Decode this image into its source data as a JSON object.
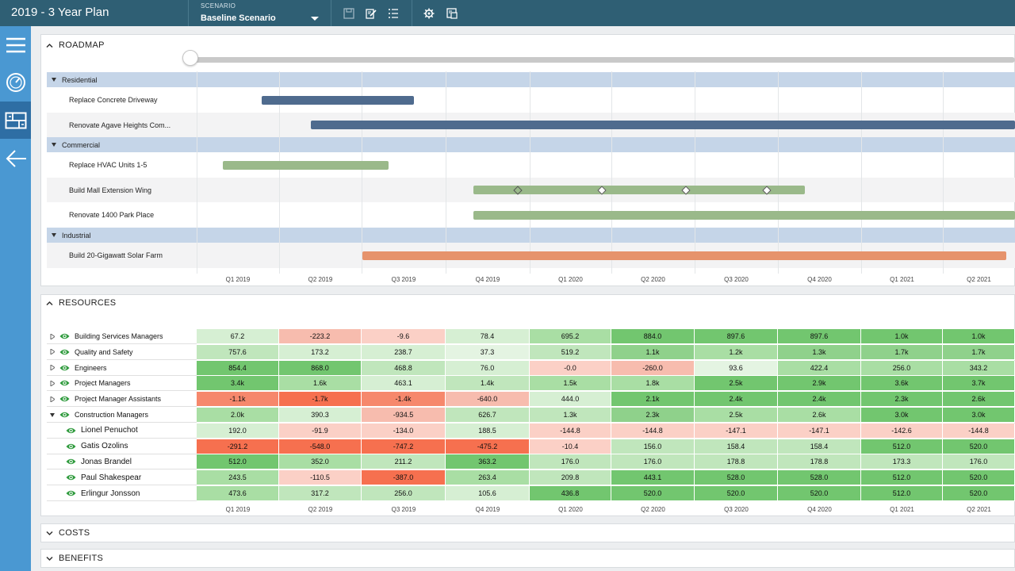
{
  "app": {
    "title": "2019 - 3 Year Plan"
  },
  "scenario": {
    "label": "SCENARIO",
    "value": "Baseline Scenario"
  },
  "toolbar_icons": [
    "save-icon",
    "edit-icon",
    "list-icon",
    "settings-gear-icon",
    "export-icon"
  ],
  "sidebar": [
    "menu-icon",
    "dashboard-gauge-icon",
    "roadmap-icon",
    "back-arrow-icon"
  ],
  "colors": {
    "topbar": "#2f5f74",
    "sidebar": "#4a98d2",
    "group_row": "#c5d5e8",
    "bar_blue": "#4f6b8e",
    "bar_green": "#9ab98a",
    "bar_orange": "#e6936c"
  },
  "roadmap": {
    "title": "ROADMAP",
    "quarters": [
      "Q1 2019",
      "Q2 2019",
      "Q3 2019",
      "Q4 2019",
      "Q1 2020",
      "Q2 2020",
      "Q3 2020",
      "Q4 2020",
      "Q1 2021",
      "Q2 2021"
    ],
    "rows": [
      {
        "type": "group",
        "label": "Residential"
      },
      {
        "type": "task",
        "label": "Replace Concrete Driveway"
      },
      {
        "type": "task",
        "label": "Renovate Agave Heights Com..."
      },
      {
        "type": "group",
        "label": "Commercial"
      },
      {
        "type": "task",
        "label": "Replace HVAC Units 1-5"
      },
      {
        "type": "task",
        "label": "Build Mall Extension Wing"
      },
      {
        "type": "task",
        "label": "Renovate 1400 Park Place"
      },
      {
        "type": "group",
        "label": "Industrial"
      },
      {
        "type": "task",
        "label": "Build 20-Gigawatt Solar Farm"
      }
    ]
  },
  "resources": {
    "title": "RESOURCES",
    "quarters": [
      "Q1 2019",
      "Q2 2019",
      "Q3 2019",
      "Q4 2019",
      "Q1 2020",
      "Q2 2020",
      "Q3 2020",
      "Q4 2020",
      "Q1 2021",
      "Q2 2021"
    ],
    "rows": [
      {
        "name": "Building Services Managers",
        "level": 0,
        "expanded": false,
        "values": [
          "67.2",
          "-223.2",
          "-9.6",
          "78.4",
          "695.2",
          "884.0",
          "897.6",
          "897.6",
          "1.0k",
          "1.0k"
        ],
        "colors": [
          "#d6efd3",
          "#f7bcae",
          "#fbd0c6",
          "#d6efd3",
          "#a9dea4",
          "#72c66f",
          "#72c66f",
          "#72c66f",
          "#72c66f",
          "#72c66f"
        ]
      },
      {
        "name": "Quality and Safety",
        "level": 0,
        "expanded": false,
        "values": [
          "757.6",
          "173.2",
          "238.7",
          "37.3",
          "519.2",
          "1.1k",
          "1.2k",
          "1.3k",
          "1.7k",
          "1.7k"
        ],
        "colors": [
          "#c0e6bc",
          "#d6efd3",
          "#d6efd3",
          "#e4f4e2",
          "#c0e6bc",
          "#8fd18b",
          "#a9dea4",
          "#8fd18b",
          "#8fd18b",
          "#8fd18b"
        ]
      },
      {
        "name": "Engineers",
        "level": 0,
        "expanded": false,
        "values": [
          "854.4",
          "868.0",
          "468.8",
          "76.0",
          "-0.0",
          "-260.0",
          "93.6",
          "422.4",
          "256.0",
          "343.2"
        ],
        "colors": [
          "#72c66f",
          "#72c66f",
          "#c0e6bc",
          "#d6efd3",
          "#fbd0c6",
          "#f7bcae",
          "#e4f4e2",
          "#a9dea4",
          "#a9dea4",
          "#a9dea4"
        ]
      },
      {
        "name": "Project Managers",
        "level": 0,
        "expanded": false,
        "values": [
          "3.4k",
          "1.6k",
          "463.1",
          "1.4k",
          "1.5k",
          "1.8k",
          "2.5k",
          "2.9k",
          "3.6k",
          "3.7k"
        ],
        "colors": [
          "#72c66f",
          "#a9dea4",
          "#d6efd3",
          "#c0e6bc",
          "#a9dea4",
          "#a9dea4",
          "#72c66f",
          "#72c66f",
          "#72c66f",
          "#72c66f"
        ]
      },
      {
        "name": "Project Manager Assistants",
        "level": 0,
        "expanded": false,
        "values": [
          "-1.1k",
          "-1.7k",
          "-1.4k",
          "-640.0",
          "444.0",
          "2.1k",
          "2.4k",
          "2.4k",
          "2.3k",
          "2.6k"
        ],
        "colors": [
          "#f6886c",
          "#f6704f",
          "#f6886c",
          "#f7bcae",
          "#d6efd3",
          "#72c66f",
          "#72c66f",
          "#72c66f",
          "#72c66f",
          "#72c66f"
        ]
      },
      {
        "name": "Construction Managers",
        "level": 0,
        "expanded": true,
        "values": [
          "2.0k",
          "390.3",
          "-934.5",
          "626.7",
          "1.3k",
          "2.3k",
          "2.5k",
          "2.6k",
          "3.0k",
          "3.0k"
        ],
        "colors": [
          "#a9dea4",
          "#d6efd3",
          "#f7bcae",
          "#c0e6bc",
          "#c0e6bc",
          "#8fd18b",
          "#a9dea4",
          "#a9dea4",
          "#72c66f",
          "#72c66f"
        ]
      },
      {
        "name": "Lionel Penuchot",
        "level": 1,
        "expanded": false,
        "values": [
          "192.0",
          "-91.9",
          "-134.0",
          "188.5",
          "-144.8",
          "-144.8",
          "-147.1",
          "-147.1",
          "-142.6",
          "-144.8"
        ],
        "colors": [
          "#d6efd3",
          "#fbd0c6",
          "#fbd0c6",
          "#d6efd3",
          "#fbd0c6",
          "#fbd0c6",
          "#fbd0c6",
          "#fbd0c6",
          "#fbd0c6",
          "#fbd0c6"
        ]
      },
      {
        "name": "Gatis Ozolins",
        "level": 1,
        "expanded": false,
        "values": [
          "-291.2",
          "-548.0",
          "-747.2",
          "-475.2",
          "-10.4",
          "156.0",
          "158.4",
          "158.4",
          "512.0",
          "520.0"
        ],
        "colors": [
          "#f6704f",
          "#f6704f",
          "#f6704f",
          "#f6704f",
          "#fbd0c6",
          "#c0e6bc",
          "#c0e6bc",
          "#c0e6bc",
          "#72c66f",
          "#72c66f"
        ]
      },
      {
        "name": "Jonas Brandel",
        "level": 1,
        "expanded": false,
        "values": [
          "512.0",
          "352.0",
          "211.2",
          "363.2",
          "176.0",
          "176.0",
          "178.8",
          "178.8",
          "173.3",
          "176.0"
        ],
        "colors": [
          "#72c66f",
          "#a9dea4",
          "#c0e6bc",
          "#72c66f",
          "#c0e6bc",
          "#c0e6bc",
          "#c0e6bc",
          "#c0e6bc",
          "#c0e6bc",
          "#c0e6bc"
        ]
      },
      {
        "name": "Paul Shakespear",
        "level": 1,
        "expanded": false,
        "values": [
          "243.5",
          "-110.5",
          "-387.0",
          "263.4",
          "209.8",
          "443.1",
          "528.0",
          "528.0",
          "512.0",
          "520.0"
        ],
        "colors": [
          "#a9dea4",
          "#fbd0c6",
          "#f6704f",
          "#a9dea4",
          "#c0e6bc",
          "#72c66f",
          "#72c66f",
          "#72c66f",
          "#72c66f",
          "#72c66f"
        ]
      },
      {
        "name": "Erlingur Jonsson",
        "level": 1,
        "expanded": false,
        "values": [
          "473.6",
          "317.2",
          "256.0",
          "105.6",
          "436.8",
          "520.0",
          "520.0",
          "520.0",
          "512.0",
          "520.0"
        ],
        "colors": [
          "#a9dea4",
          "#c0e6bc",
          "#c0e6bc",
          "#d6efd3",
          "#72c66f",
          "#72c66f",
          "#72c66f",
          "#72c66f",
          "#72c66f",
          "#72c66f"
        ]
      }
    ]
  },
  "costs": {
    "title": "COSTS"
  },
  "benefits": {
    "title": "BENEFITS"
  }
}
